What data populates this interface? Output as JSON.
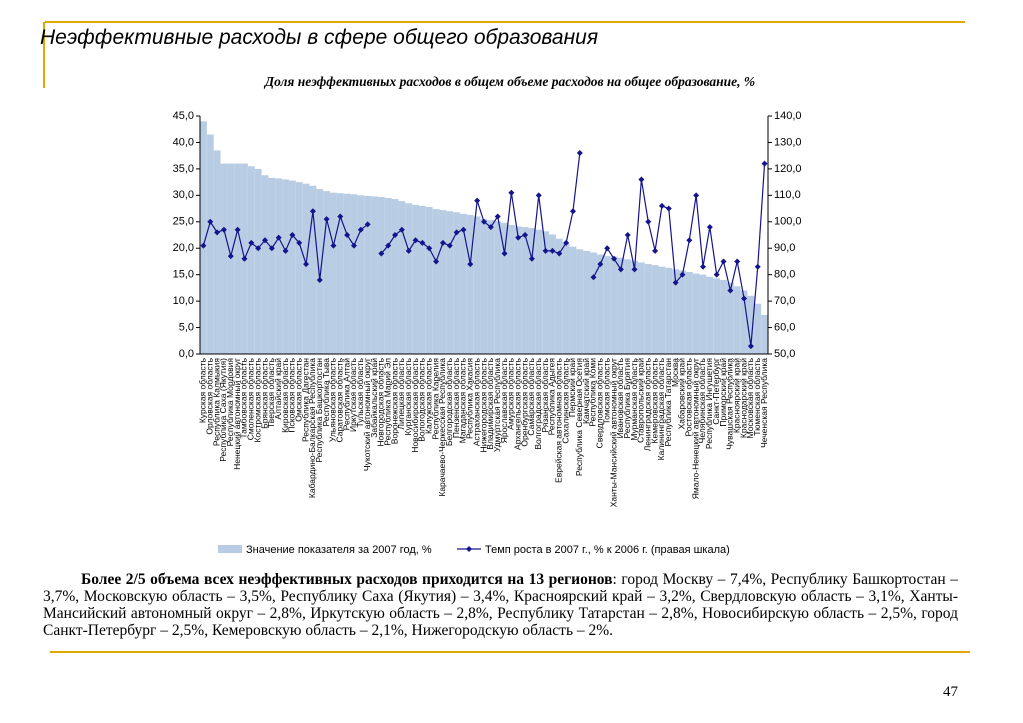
{
  "slide": {
    "title": "Неэффективные расходы в сфере общего образования",
    "page_number": "47"
  },
  "chart_data": {
    "type": "bar_line",
    "title": "Доля неэффективных расходов в общем объеме расходов на общее образование, %",
    "categories": [
      "Курская область",
      "Орловская область",
      "Республика Калмыкия",
      "Республика Саха (Якутия)",
      "Республика Мордовия",
      "Ненецкий автономный округ",
      "Тамбовская область",
      "Смоленская область",
      "Костромская область",
      "Брянская область",
      "Тверская область",
      "Алтайский край",
      "Кировская область",
      "Псковская область",
      "Омская область",
      "Республика Дагестан",
      "Кабардино-Балкарская Республика",
      "Республика Башкортостан",
      "Республика Тыва",
      "Ульяновская область",
      "Саратовская область",
      "Республика Алтай",
      "Иркутская область",
      "Тульская область",
      "Чукотский автономный округ",
      "Забайкальский край",
      "Новгородская область",
      "Республика Марий Эл",
      "Воронежская область",
      "Липецкая область",
      "Курганская область",
      "Новосибирская область",
      "Вологодская область",
      "Калужская область",
      "Республика Карелия",
      "Карачаево-Черкесская Республика",
      "Белгородская область",
      "Пензенская область",
      "Магаданская область",
      "Республика Хакасия",
      "Астраханская область",
      "Нижегородская область",
      "Владимирская область",
      "Удмуртская Республика",
      "Ярославская область",
      "Амурская область",
      "Архангельская область",
      "Оренбургская область",
      "Самарская область",
      "Волгоградская область",
      "Рязанская область",
      "Республика Адыгея",
      "Еврейская автономная область",
      "Сахалинская область",
      "Пермский край",
      "Республика Северная Осетия",
      "Камчатский край",
      "Республика Коми",
      "Свердловская область",
      "Томская область",
      "Ханты-Мансийский автономный округ",
      "Ивановская область",
      "Республика Бурятия",
      "Мурманская область",
      "Ставропольский край",
      "Ленинградская область",
      "Кемеровская область",
      "Калининградская область",
      "Республика Татарстан",
      "Москва",
      "Хабаровский край",
      "Ростовская область",
      "Ямало-Ненецкий автономный округ",
      "Челябинская область",
      "Республика Ингушетия",
      "Санкт-Петербург",
      "Приморский край",
      "Чувашская Республика",
      "Красноярский край",
      "Краснодарский край",
      "Московская область",
      "Тюменская область",
      "Чеченская Республика"
    ],
    "series": [
      {
        "name": "Значение показателя за 2007 год, %",
        "type": "bar",
        "color": "#b8cce4",
        "values": [
          44,
          41.5,
          38.5,
          36,
          36,
          36,
          36,
          35.5,
          35,
          33.8,
          33.3,
          33.2,
          33,
          32.8,
          32.5,
          32.2,
          31.8,
          31.2,
          30.8,
          30.5,
          30.4,
          30.3,
          30.2,
          30,
          29.9,
          29.8,
          29.7,
          29.5,
          29.3,
          28.9,
          28.5,
          28.2,
          28,
          27.8,
          27.4,
          27.2,
          27,
          26.8,
          26.5,
          26.3,
          26,
          25.5,
          25.3,
          25.1,
          24.8,
          24.4,
          24.1,
          24,
          23.8,
          23.5,
          23.2,
          22.6,
          21.8,
          21,
          20.3,
          19.8,
          19.5,
          19.2,
          18.8,
          18.5,
          18.4,
          18.2,
          17.9,
          17.6,
          17.3,
          17,
          16.8,
          16.5,
          16.3,
          16,
          15.8,
          15.5,
          15.2,
          15,
          14.6,
          14.3,
          14,
          13.5,
          12.8,
          12,
          11,
          9.5,
          7.4
        ]
      },
      {
        "name": "Темп роста в 2007 г., % к 2006 г. (правая шкала)",
        "type": "line",
        "axis": "y2",
        "color": "#14148c",
        "values": [
          91,
          100,
          96,
          97,
          87,
          97,
          86,
          92,
          90,
          93,
          90,
          94,
          89,
          95,
          92,
          84,
          104,
          78,
          101,
          91,
          102,
          95,
          91,
          97,
          99,
          null,
          88,
          91,
          95,
          97,
          89,
          93,
          92,
          90,
          85,
          92,
          91,
          96,
          97,
          84,
          108,
          100,
          98,
          102,
          88,
          111,
          94,
          95,
          86,
          110,
          89,
          89,
          88,
          92,
          104,
          126,
          null,
          79,
          84,
          90,
          86,
          82,
          95,
          82,
          116,
          100,
          89,
          106,
          105,
          77,
          80,
          93,
          110,
          83,
          98,
          80,
          85,
          74,
          85,
          71,
          53,
          83,
          122
        ]
      }
    ],
    "ylim": [
      0,
      45
    ],
    "yticks": [
      {
        "value": 0,
        "label": "0,0"
      },
      {
        "value": 5,
        "label": "5,0"
      },
      {
        "value": 10,
        "label": "10,0"
      },
      {
        "value": 15,
        "label": "15,0"
      },
      {
        "value": 20,
        "label": "20,0"
      },
      {
        "value": 25,
        "label": "25,0"
      },
      {
        "value": 30,
        "label": "30,0"
      },
      {
        "value": 35,
        "label": "35,0"
      },
      {
        "value": 40,
        "label": "40,0"
      },
      {
        "value": 45,
        "label": "45,0"
      }
    ],
    "y2lim": [
      50,
      140
    ],
    "y2ticks": [
      {
        "value": 50,
        "label": "50,0"
      },
      {
        "value": 60,
        "label": "60,0"
      },
      {
        "value": 70,
        "label": "70,0"
      },
      {
        "value": 80,
        "label": "80,0"
      },
      {
        "value": 90,
        "label": "90,0"
      },
      {
        "value": 100,
        "label": "100,0"
      },
      {
        "value": 110,
        "label": "110,0"
      },
      {
        "value": 120,
        "label": "120,0"
      },
      {
        "value": 130,
        "label": "130,0"
      },
      {
        "value": 140,
        "label": "140,0"
      }
    ],
    "legend": "bottom"
  },
  "text": {
    "bold": "Более 2/5 объема всех неэффективных расходов приходится на 13 регионов",
    "rest": ": город Москву – 7,4%, Республику Башкортостан – 3,7%, Московскую область – 3,5%, Республику Саха (Якутия) – 3,4%, Красноярский край – 3,2%, Свердловскую область – 3,1%, Ханты-Мансийский автономный округ – 2,8%, Иркутскую область – 2,8%, Республику Татарстан – 2,8%, Новосибирскую область – 2,5%, город Санкт-Петербург – 2,5%, Кемеровскую область – 2,1%, Нижегородскую область – 2%."
  }
}
